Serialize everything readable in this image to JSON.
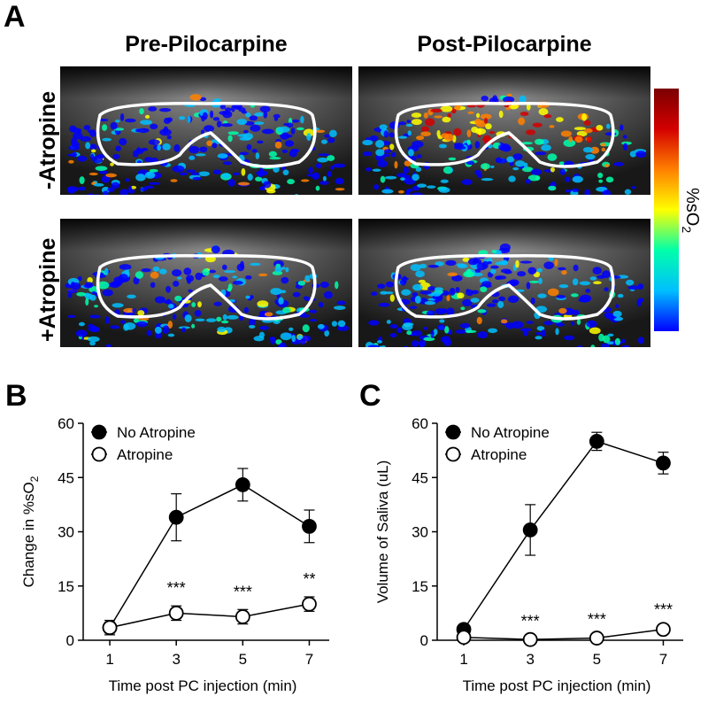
{
  "panel_a": {
    "letter": "A",
    "col_titles": [
      "Pre-Pilocarpine",
      "Post-Pilocarpine"
    ],
    "row_labels": [
      "-Atropine",
      "+Atropine"
    ],
    "colorbar_label": "%sO2",
    "colorbar_colors": [
      "#0000ff",
      "#00bfff",
      "#00ffaa",
      "#ffff00",
      "#ff8000",
      "#d40000",
      "#7a0000"
    ]
  },
  "chart_data": [
    {
      "type": "line",
      "panel": "B",
      "xlabel": "Time post PC injection (min)",
      "ylabel": "Change in %sO2",
      "x": [
        1,
        3,
        5,
        7
      ],
      "xticks": [
        "1",
        "3",
        "5",
        "7"
      ],
      "yticks": [
        "0",
        "15",
        "30",
        "45",
        "60"
      ],
      "ylim": [
        0,
        60
      ],
      "legend": "top-left",
      "series": [
        {
          "name": "No Atropine",
          "marker": "filled",
          "values": [
            3.5,
            34,
            43,
            31.5
          ],
          "err": [
            2.0,
            6.5,
            4.5,
            4.5
          ]
        },
        {
          "name": "Atropine",
          "marker": "open",
          "values": [
            3.5,
            7.5,
            6.5,
            10
          ],
          "err": [
            1.5,
            2.0,
            2.0,
            2.0
          ]
        }
      ],
      "annotations": [
        {
          "x": 3,
          "text": "***"
        },
        {
          "x": 5,
          "text": "***"
        },
        {
          "x": 7,
          "text": "**"
        }
      ]
    },
    {
      "type": "line",
      "panel": "C",
      "xlabel": "Time post PC injection (min)",
      "ylabel": "Volume of Saliva (uL)",
      "x": [
        1,
        3,
        5,
        7
      ],
      "xticks": [
        "1",
        "3",
        "5",
        "7"
      ],
      "yticks": [
        "0",
        "15",
        "30",
        "45",
        "60"
      ],
      "ylim": [
        0,
        60
      ],
      "legend": "top-left",
      "series": [
        {
          "name": "No Atropine",
          "marker": "filled",
          "values": [
            3,
            30.5,
            55,
            49
          ],
          "err": [
            0.5,
            7.0,
            2.5,
            3.0
          ]
        },
        {
          "name": "Atropine",
          "marker": "open",
          "values": [
            0.8,
            0.2,
            0.6,
            3
          ],
          "err": [
            0.3,
            0.2,
            0.3,
            0.5
          ]
        }
      ],
      "annotations": [
        {
          "x": 3,
          "text": "***"
        },
        {
          "x": 5,
          "text": "***"
        },
        {
          "x": 7,
          "text": "***"
        }
      ]
    }
  ]
}
